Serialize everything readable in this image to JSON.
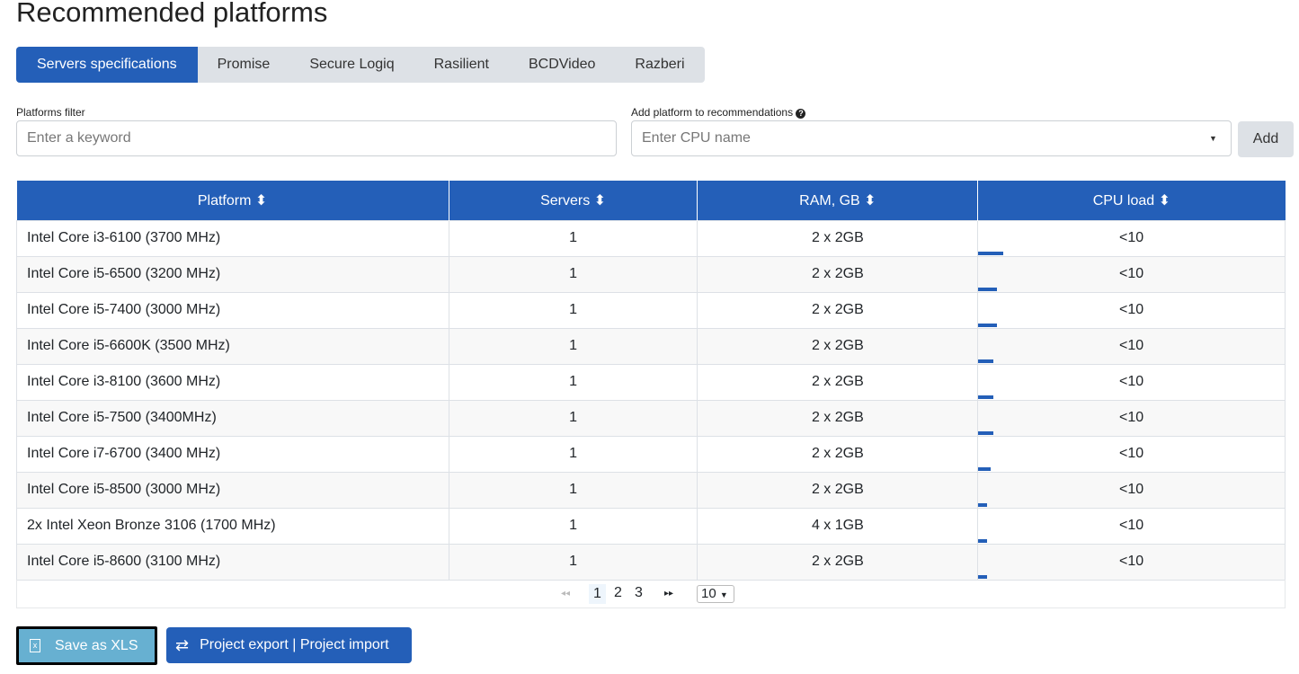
{
  "title": "Recommended platforms",
  "tabs": [
    "Servers specifications",
    "Promise",
    "Secure Logiq",
    "Rasilient",
    "BCDVideo",
    "Razberi"
  ],
  "filter": {
    "label": "Platforms filter",
    "placeholder": "Enter a keyword"
  },
  "add": {
    "label": "Add platform to recommendations",
    "placeholder": "Enter CPU name",
    "button": "Add"
  },
  "table": {
    "headers": [
      "Platform ⬍",
      "Servers ⬍",
      "RAM, GB ⬍",
      "CPU load ⬍"
    ],
    "rows": [
      {
        "platform": "Intel Core i3-6100 (3700 MHz)",
        "servers": "1",
        "ram": "2 x 2GB",
        "cpu": "<10",
        "load_pct": 8
      },
      {
        "platform": "Intel Core i5-6500 (3200 MHz)",
        "servers": "1",
        "ram": "2 x 2GB",
        "cpu": "<10",
        "load_pct": 6
      },
      {
        "platform": "Intel Core i5-7400 (3000 MHz)",
        "servers": "1",
        "ram": "2 x 2GB",
        "cpu": "<10",
        "load_pct": 6
      },
      {
        "platform": "Intel Core i5-6600K (3500 MHz)",
        "servers": "1",
        "ram": "2 x 2GB",
        "cpu": "<10",
        "load_pct": 5
      },
      {
        "platform": "Intel Core i3-8100 (3600 MHz)",
        "servers": "1",
        "ram": "2 x 2GB",
        "cpu": "<10",
        "load_pct": 5
      },
      {
        "platform": "Intel Core i5-7500 (3400MHz)",
        "servers": "1",
        "ram": "2 x 2GB",
        "cpu": "<10",
        "load_pct": 5
      },
      {
        "platform": "Intel Core i7-6700 (3400 MHz)",
        "servers": "1",
        "ram": "2 x 2GB",
        "cpu": "<10",
        "load_pct": 4
      },
      {
        "platform": "Intel Core i5-8500 (3000 MHz)",
        "servers": "1",
        "ram": "2 x 2GB",
        "cpu": "<10",
        "load_pct": 3
      },
      {
        "platform": "2x Intel Xeon Bronze 3106 (1700 MHz)",
        "servers": "1",
        "ram": "4 x 1GB",
        "cpu": "<10",
        "load_pct": 3
      },
      {
        "platform": "Intel Core i5-8600 (3100 MHz)",
        "servers": "1",
        "ram": "2 x 2GB",
        "cpu": "<10",
        "load_pct": 3
      }
    ]
  },
  "pager": {
    "prev": "◂◂",
    "pages": [
      "1",
      "2",
      "3"
    ],
    "next": "▸▸",
    "per_page": "10",
    "current": "1"
  },
  "buttons": {
    "save": "Save as XLS",
    "export": "Project export | Project import"
  },
  "colors": {
    "accent": "#245fb8",
    "save": "#67b0d1"
  }
}
